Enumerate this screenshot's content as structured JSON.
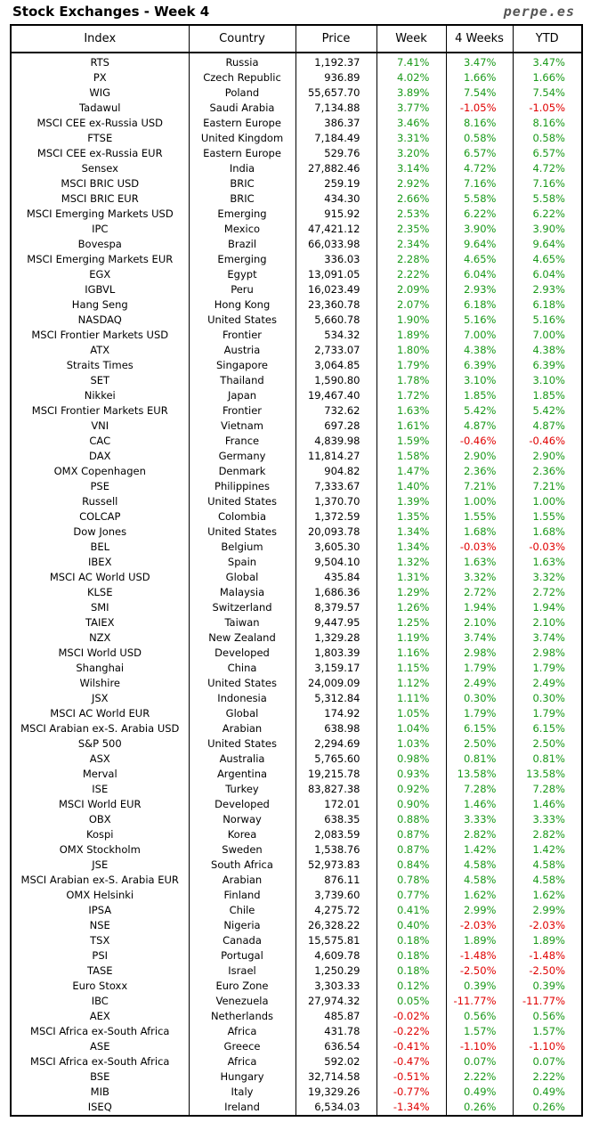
{
  "title": "Stock Exchanges - Week 4",
  "watermark": "perpe.es",
  "colors": {
    "positive": "#1a9a1a",
    "negative": "#e00000",
    "text": "#000000"
  },
  "chart_data": {
    "type": "table",
    "columns": [
      "Index",
      "Country",
      "Price",
      "Week",
      "4 Weeks",
      "YTD"
    ],
    "rows": [
      [
        "RTS",
        "Russia",
        "1,192.37",
        "7.41%",
        "3.47%",
        "3.47%"
      ],
      [
        "PX",
        "Czech Republic",
        "936.89",
        "4.02%",
        "1.66%",
        "1.66%"
      ],
      [
        "WIG",
        "Poland",
        "55,657.70",
        "3.89%",
        "7.54%",
        "7.54%"
      ],
      [
        "Tadawul",
        "Saudi Arabia",
        "7,134.88",
        "3.77%",
        "-1.05%",
        "-1.05%"
      ],
      [
        "MSCI CEE ex-Russia USD",
        "Eastern Europe",
        "386.37",
        "3.46%",
        "8.16%",
        "8.16%"
      ],
      [
        "FTSE",
        "United Kingdom",
        "7,184.49",
        "3.31%",
        "0.58%",
        "0.58%"
      ],
      [
        "MSCI CEE ex-Russia EUR",
        "Eastern Europe",
        "529.76",
        "3.20%",
        "6.57%",
        "6.57%"
      ],
      [
        "Sensex",
        "India",
        "27,882.46",
        "3.14%",
        "4.72%",
        "4.72%"
      ],
      [
        "MSCI BRIC USD",
        "BRIC",
        "259.19",
        "2.92%",
        "7.16%",
        "7.16%"
      ],
      [
        "MSCI BRIC EUR",
        "BRIC",
        "434.30",
        "2.66%",
        "5.58%",
        "5.58%"
      ],
      [
        "MSCI Emerging Markets USD",
        "Emerging",
        "915.92",
        "2.53%",
        "6.22%",
        "6.22%"
      ],
      [
        "IPC",
        "Mexico",
        "47,421.12",
        "2.35%",
        "3.90%",
        "3.90%"
      ],
      [
        "Bovespa",
        "Brazil",
        "66,033.98",
        "2.34%",
        "9.64%",
        "9.64%"
      ],
      [
        "MSCI Emerging Markets EUR",
        "Emerging",
        "336.03",
        "2.28%",
        "4.65%",
        "4.65%"
      ],
      [
        "EGX",
        "Egypt",
        "13,091.05",
        "2.22%",
        "6.04%",
        "6.04%"
      ],
      [
        "IGBVL",
        "Peru",
        "16,023.49",
        "2.09%",
        "2.93%",
        "2.93%"
      ],
      [
        "Hang Seng",
        "Hong Kong",
        "23,360.78",
        "2.07%",
        "6.18%",
        "6.18%"
      ],
      [
        "NASDAQ",
        "United States",
        "5,660.78",
        "1.90%",
        "5.16%",
        "5.16%"
      ],
      [
        "MSCI Frontier Markets USD",
        "Frontier",
        "534.32",
        "1.89%",
        "7.00%",
        "7.00%"
      ],
      [
        "ATX",
        "Austria",
        "2,733.07",
        "1.80%",
        "4.38%",
        "4.38%"
      ],
      [
        "Straits Times",
        "Singapore",
        "3,064.85",
        "1.79%",
        "6.39%",
        "6.39%"
      ],
      [
        "SET",
        "Thailand",
        "1,590.80",
        "1.78%",
        "3.10%",
        "3.10%"
      ],
      [
        "Nikkei",
        "Japan",
        "19,467.40",
        "1.72%",
        "1.85%",
        "1.85%"
      ],
      [
        "MSCI Frontier Markets EUR",
        "Frontier",
        "732.62",
        "1.63%",
        "5.42%",
        "5.42%"
      ],
      [
        "VNI",
        "Vietnam",
        "697.28",
        "1.61%",
        "4.87%",
        "4.87%"
      ],
      [
        "CAC",
        "France",
        "4,839.98",
        "1.59%",
        "-0.46%",
        "-0.46%"
      ],
      [
        "DAX",
        "Germany",
        "11,814.27",
        "1.58%",
        "2.90%",
        "2.90%"
      ],
      [
        "OMX Copenhagen",
        "Denmark",
        "904.82",
        "1.47%",
        "2.36%",
        "2.36%"
      ],
      [
        "PSE",
        "Philippines",
        "7,333.67",
        "1.40%",
        "7.21%",
        "7.21%"
      ],
      [
        "Russell",
        "United States",
        "1,370.70",
        "1.39%",
        "1.00%",
        "1.00%"
      ],
      [
        "COLCAP",
        "Colombia",
        "1,372.59",
        "1.35%",
        "1.55%",
        "1.55%"
      ],
      [
        "Dow Jones",
        "United States",
        "20,093.78",
        "1.34%",
        "1.68%",
        "1.68%"
      ],
      [
        "BEL",
        "Belgium",
        "3,605.30",
        "1.34%",
        "-0.03%",
        "-0.03%"
      ],
      [
        "IBEX",
        "Spain",
        "9,504.10",
        "1.32%",
        "1.63%",
        "1.63%"
      ],
      [
        "MSCI AC World USD",
        "Global",
        "435.84",
        "1.31%",
        "3.32%",
        "3.32%"
      ],
      [
        "KLSE",
        "Malaysia",
        "1,686.36",
        "1.29%",
        "2.72%",
        "2.72%"
      ],
      [
        "SMI",
        "Switzerland",
        "8,379.57",
        "1.26%",
        "1.94%",
        "1.94%"
      ],
      [
        "TAIEX",
        "Taiwan",
        "9,447.95",
        "1.25%",
        "2.10%",
        "2.10%"
      ],
      [
        "NZX",
        "New Zealand",
        "1,329.28",
        "1.19%",
        "3.74%",
        "3.74%"
      ],
      [
        "MSCI World USD",
        "Developed",
        "1,803.39",
        "1.16%",
        "2.98%",
        "2.98%"
      ],
      [
        "Shanghai",
        "China",
        "3,159.17",
        "1.15%",
        "1.79%",
        "1.79%"
      ],
      [
        "Wilshire",
        "United States",
        "24,009.09",
        "1.12%",
        "2.49%",
        "2.49%"
      ],
      [
        "JSX",
        "Indonesia",
        "5,312.84",
        "1.11%",
        "0.30%",
        "0.30%"
      ],
      [
        "MSCI AC World EUR",
        "Global",
        "174.92",
        "1.05%",
        "1.79%",
        "1.79%"
      ],
      [
        "MSCI Arabian ex-S. Arabia USD",
        "Arabian",
        "638.98",
        "1.04%",
        "6.15%",
        "6.15%"
      ],
      [
        "S&P 500",
        "United States",
        "2,294.69",
        "1.03%",
        "2.50%",
        "2.50%"
      ],
      [
        "ASX",
        "Australia",
        "5,765.60",
        "0.98%",
        "0.81%",
        "0.81%"
      ],
      [
        "Merval",
        "Argentina",
        "19,215.78",
        "0.93%",
        "13.58%",
        "13.58%"
      ],
      [
        "ISE",
        "Turkey",
        "83,827.38",
        "0.92%",
        "7.28%",
        "7.28%"
      ],
      [
        "MSCI World EUR",
        "Developed",
        "172.01",
        "0.90%",
        "1.46%",
        "1.46%"
      ],
      [
        "OBX",
        "Norway",
        "638.35",
        "0.88%",
        "3.33%",
        "3.33%"
      ],
      [
        "Kospi",
        "Korea",
        "2,083.59",
        "0.87%",
        "2.82%",
        "2.82%"
      ],
      [
        "OMX Stockholm",
        "Sweden",
        "1,538.76",
        "0.87%",
        "1.42%",
        "1.42%"
      ],
      [
        "JSE",
        "South Africa",
        "52,973.83",
        "0.84%",
        "4.58%",
        "4.58%"
      ],
      [
        "MSCI Arabian ex-S. Arabia EUR",
        "Arabian",
        "876.11",
        "0.78%",
        "4.58%",
        "4.58%"
      ],
      [
        "OMX Helsinki",
        "Finland",
        "3,739.60",
        "0.77%",
        "1.62%",
        "1.62%"
      ],
      [
        "IPSA",
        "Chile",
        "4,275.72",
        "0.41%",
        "2.99%",
        "2.99%"
      ],
      [
        "NSE",
        "Nigeria",
        "26,328.22",
        "0.40%",
        "-2.03%",
        "-2.03%"
      ],
      [
        "TSX",
        "Canada",
        "15,575.81",
        "0.18%",
        "1.89%",
        "1.89%"
      ],
      [
        "PSI",
        "Portugal",
        "4,609.78",
        "0.18%",
        "-1.48%",
        "-1.48%"
      ],
      [
        "TASE",
        "Israel",
        "1,250.29",
        "0.18%",
        "-2.50%",
        "-2.50%"
      ],
      [
        "Euro Stoxx",
        "Euro Zone",
        "3,303.33",
        "0.12%",
        "0.39%",
        "0.39%"
      ],
      [
        "IBC",
        "Venezuela",
        "27,974.32",
        "0.05%",
        "-11.77%",
        "-11.77%"
      ],
      [
        "AEX",
        "Netherlands",
        "485.87",
        "-0.02%",
        "0.56%",
        "0.56%"
      ],
      [
        "MSCI Africa ex-South Africa",
        "Africa",
        "431.78",
        "-0.22%",
        "1.57%",
        "1.57%"
      ],
      [
        "ASE",
        "Greece",
        "636.54",
        "-0.41%",
        "-1.10%",
        "-1.10%"
      ],
      [
        "MSCI Africa ex-South Africa",
        "Africa",
        "592.02",
        "-0.47%",
        "0.07%",
        "0.07%"
      ],
      [
        "BSE",
        "Hungary",
        "32,714.58",
        "-0.51%",
        "2.22%",
        "2.22%"
      ],
      [
        "MIB",
        "Italy",
        "19,329.26",
        "-0.77%",
        "0.49%",
        "0.49%"
      ],
      [
        "ISEQ",
        "Ireland",
        "6,534.03",
        "-1.34%",
        "0.26%",
        "0.26%"
      ]
    ]
  }
}
